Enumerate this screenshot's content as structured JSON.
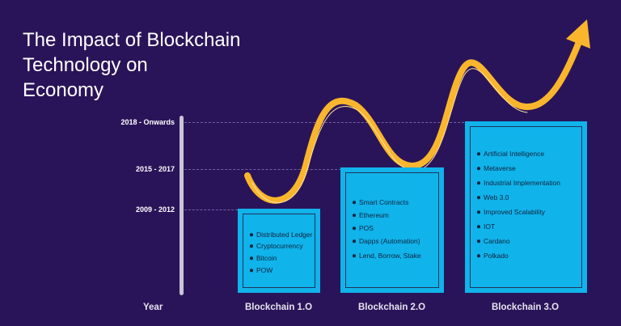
{
  "title_lines": [
    "The Impact of Blockchain",
    "Technology on",
    "Economy"
  ],
  "timeline": {
    "periods": [
      "2018 - Onwards",
      "2015 - 2017",
      "2009 - 2012"
    ],
    "axis_label": "Year"
  },
  "stages": [
    {
      "name": "Blockchain 1.O",
      "items": [
        "Distributed Ledger",
        "Cryptocurrency",
        "Bitcoin",
        "POW"
      ]
    },
    {
      "name": "Blockchain 2.O",
      "items": [
        "Smart Contracts",
        "Ethereum",
        "POS",
        "Dapps (Automation)",
        "Lend, Borrow, Stake"
      ]
    },
    {
      "name": "Blockchain 3.O",
      "items": [
        "Artificial Intelligence",
        "Metaverse",
        "Industrial Implementation",
        "Web 3.0",
        "Improved Scalability",
        "IOT",
        "Cardano",
        "Polkado"
      ]
    }
  ],
  "colors": {
    "background": "#2a1459",
    "box": "#10b3ea",
    "arrow": "#f9b62c"
  }
}
